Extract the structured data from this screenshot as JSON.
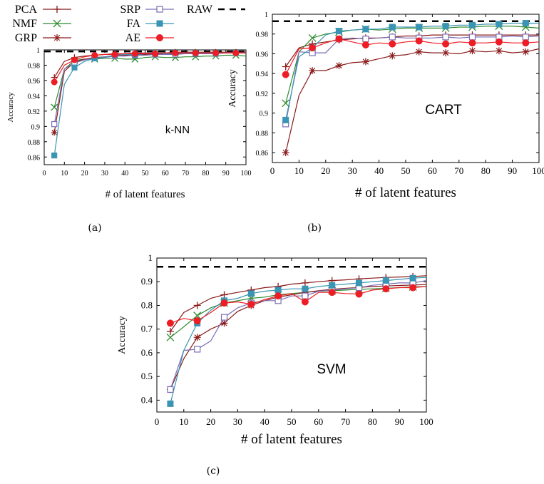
{
  "colors": {
    "PCA": "#8b1a1a",
    "SRP": "#7a6fb5",
    "RAW": "#000000",
    "NMF": "#2e8b2e",
    "FA": "#3a94b4",
    "GRP": "#8b1a1a",
    "AE": "#ee1c24"
  },
  "legend": [
    {
      "name": "PCA",
      "marker": "plus"
    },
    {
      "name": "SRP",
      "marker": "square-open"
    },
    {
      "name": "RAW",
      "marker": "dash"
    },
    {
      "name": "NMF",
      "marker": "x"
    },
    {
      "name": "FA",
      "marker": "square-filled"
    },
    {
      "name": "GRP",
      "marker": "star"
    },
    {
      "name": "AE",
      "marker": "circle"
    }
  ],
  "chart_data": [
    {
      "id": "a",
      "type": "line",
      "caption": "(a)",
      "classifier_label": "k-NN",
      "xlabel": "# of latent features",
      "ylabel": "Accuracy",
      "xlim": [
        0,
        100
      ],
      "ylim": [
        0.85,
        1.0
      ],
      "xticks": [
        "0",
        "10",
        "20",
        "30",
        "40",
        "50",
        "60",
        "70",
        "80",
        "90",
        "100"
      ],
      "yticks": [
        "0.86",
        "0.88",
        "0.9",
        "0.92",
        "0.94",
        "0.96",
        "0.98",
        "1"
      ],
      "baseline": {
        "name": "RAW",
        "value": 0.998
      },
      "x": [
        5,
        10,
        15,
        20,
        25,
        30,
        35,
        40,
        45,
        50,
        55,
        60,
        65,
        70,
        75,
        80,
        85,
        90,
        95,
        100
      ],
      "series": [
        {
          "name": "PCA",
          "values": [
            0.964,
            0.985,
            0.99,
            0.992,
            0.993,
            0.994,
            0.995,
            0.995,
            0.996,
            0.996,
            0.996,
            0.996,
            0.997,
            0.997,
            0.997,
            0.997,
            0.997,
            0.997,
            0.997,
            0.997
          ]
        },
        {
          "name": "NMF",
          "values": [
            0.925,
            0.975,
            0.986,
            0.988,
            0.988,
            0.989,
            0.989,
            0.988,
            0.988,
            0.99,
            0.991,
            0.99,
            0.99,
            0.991,
            0.991,
            0.992,
            0.992,
            0.993,
            0.993,
            0.992
          ]
        },
        {
          "name": "GRP",
          "values": [
            0.892,
            0.972,
            0.984,
            0.988,
            0.99,
            0.991,
            0.992,
            0.993,
            0.993,
            0.994,
            0.994,
            0.994,
            0.995,
            0.995,
            0.995,
            0.995,
            0.996,
            0.996,
            0.996,
            0.996
          ]
        },
        {
          "name": "SRP",
          "values": [
            0.903,
            0.975,
            0.983,
            0.987,
            0.989,
            0.99,
            0.992,
            0.992,
            0.993,
            0.993,
            0.994,
            0.994,
            0.994,
            0.995,
            0.995,
            0.995,
            0.995,
            0.996,
            0.996,
            0.996
          ]
        },
        {
          "name": "FA",
          "values": [
            0.862,
            0.955,
            0.977,
            0.985,
            0.989,
            0.991,
            0.993,
            0.994,
            0.994,
            0.995,
            0.995,
            0.995,
            0.996,
            0.996,
            0.996,
            0.996,
            0.996,
            0.996,
            0.996,
            0.996
          ]
        },
        {
          "name": "AE",
          "values": [
            0.958,
            0.98,
            0.987,
            0.991,
            0.993,
            0.994,
            0.994,
            0.995,
            0.995,
            0.995,
            0.995,
            0.996,
            0.996,
            0.996,
            0.996,
            0.996,
            0.996,
            0.996,
            0.996,
            0.996
          ]
        }
      ]
    },
    {
      "id": "b",
      "type": "line",
      "caption": "(b)",
      "classifier_label": "CART",
      "xlabel": "# of latent features",
      "ylabel": "Accuracy",
      "xlim": [
        0,
        100
      ],
      "ylim": [
        0.85,
        1.0
      ],
      "xticks": [
        "0",
        "10",
        "20",
        "30",
        "40",
        "50",
        "60",
        "70",
        "80",
        "90",
        "100"
      ],
      "yticks": [
        "0.86",
        "0.88",
        "0.9",
        "0.92",
        "0.94",
        "0.96",
        "0.98",
        "1"
      ],
      "baseline": {
        "name": "RAW",
        "value": 0.993
      },
      "x": [
        5,
        10,
        15,
        20,
        25,
        30,
        35,
        40,
        45,
        50,
        55,
        60,
        65,
        70,
        75,
        80,
        85,
        90,
        95,
        100
      ],
      "series": [
        {
          "name": "PCA",
          "values": [
            0.947,
            0.966,
            0.97,
            0.972,
            0.974,
            0.975,
            0.976,
            0.976,
            0.977,
            0.978,
            0.978,
            0.979,
            0.979,
            0.979,
            0.979,
            0.979,
            0.979,
            0.979,
            0.979,
            0.979
          ]
        },
        {
          "name": "NMF",
          "values": [
            0.91,
            0.962,
            0.976,
            0.98,
            0.982,
            0.984,
            0.985,
            0.984,
            0.985,
            0.986,
            0.986,
            0.986,
            0.986,
            0.987,
            0.987,
            0.988,
            0.988,
            0.988,
            0.987,
            0.986
          ]
        },
        {
          "name": "GRP",
          "values": [
            0.86,
            0.918,
            0.943,
            0.943,
            0.948,
            0.951,
            0.952,
            0.955,
            0.958,
            0.959,
            0.962,
            0.961,
            0.961,
            0.96,
            0.963,
            0.962,
            0.963,
            0.961,
            0.962,
            0.965
          ]
        },
        {
          "name": "SRP",
          "values": [
            0.889,
            0.962,
            0.961,
            0.961,
            0.975,
            0.976,
            0.975,
            0.976,
            0.977,
            0.976,
            0.976,
            0.976,
            0.977,
            0.976,
            0.977,
            0.977,
            0.977,
            0.978,
            0.977,
            0.978
          ]
        },
        {
          "name": "FA",
          "values": [
            0.893,
            0.957,
            0.966,
            0.979,
            0.983,
            0.984,
            0.985,
            0.985,
            0.987,
            0.987,
            0.987,
            0.988,
            0.988,
            0.989,
            0.989,
            0.99,
            0.99,
            0.991,
            0.991,
            0.991
          ]
        },
        {
          "name": "AE",
          "values": [
            0.939,
            0.965,
            0.966,
            0.971,
            0.975,
            0.972,
            0.969,
            0.971,
            0.97,
            0.972,
            0.973,
            0.971,
            0.97,
            0.972,
            0.971,
            0.971,
            0.972,
            0.971,
            0.971,
            0.972
          ]
        }
      ]
    },
    {
      "id": "c",
      "type": "line",
      "caption": "(c)",
      "classifier_label": "SVM",
      "xlabel": "# of latent features",
      "ylabel": "Accuracy",
      "xlim": [
        0,
        100
      ],
      "ylim": [
        0.35,
        1.0
      ],
      "xticks": [
        "0",
        "10",
        "20",
        "30",
        "40",
        "50",
        "60",
        "70",
        "80",
        "90",
        "100"
      ],
      "yticks": [
        "0.4",
        "0.5",
        "0.6",
        "0.7",
        "0.8",
        "0.9",
        "1"
      ],
      "baseline": {
        "name": "RAW",
        "value": 0.963
      },
      "x": [
        5,
        10,
        15,
        20,
        25,
        30,
        35,
        40,
        45,
        50,
        55,
        60,
        65,
        70,
        75,
        80,
        85,
        90,
        95,
        100
      ],
      "series": [
        {
          "name": "PCA",
          "values": [
            0.69,
            0.77,
            0.8,
            0.83,
            0.845,
            0.855,
            0.865,
            0.875,
            0.88,
            0.89,
            0.895,
            0.9,
            0.905,
            0.908,
            0.912,
            0.915,
            0.918,
            0.92,
            0.922,
            0.925
          ]
        },
        {
          "name": "NMF",
          "values": [
            0.665,
            0.71,
            0.757,
            0.79,
            0.81,
            0.82,
            0.83,
            0.835,
            0.845,
            0.85,
            0.855,
            0.86,
            0.862,
            0.865,
            0.868,
            0.87,
            0.872,
            0.875,
            0.878,
            0.88
          ]
        },
        {
          "name": "GRP",
          "values": [
            0.445,
            0.575,
            0.665,
            0.7,
            0.725,
            0.775,
            0.8,
            0.82,
            0.835,
            0.845,
            0.855,
            0.862,
            0.868,
            0.872,
            0.876,
            0.88,
            0.882,
            0.884,
            0.886,
            0.888
          ]
        },
        {
          "name": "SRP",
          "values": [
            0.445,
            0.61,
            0.615,
            0.65,
            0.75,
            0.79,
            0.81,
            0.82,
            0.82,
            0.84,
            0.84,
            0.86,
            0.865,
            0.87,
            0.875,
            0.885,
            0.89,
            0.895,
            0.895,
            0.905
          ]
        },
        {
          "name": "FA",
          "values": [
            0.385,
            0.61,
            0.725,
            0.78,
            0.82,
            0.83,
            0.85,
            0.86,
            0.865,
            0.87,
            0.87,
            0.88,
            0.885,
            0.89,
            0.895,
            0.9,
            0.905,
            0.91,
            0.915,
            0.918
          ]
        },
        {
          "name": "AE",
          "values": [
            0.725,
            0.745,
            0.735,
            0.77,
            0.81,
            0.815,
            0.805,
            0.825,
            0.84,
            0.85,
            0.815,
            0.855,
            0.855,
            0.85,
            0.848,
            0.865,
            0.87,
            0.875,
            0.875,
            0.88
          ]
        }
      ]
    }
  ]
}
